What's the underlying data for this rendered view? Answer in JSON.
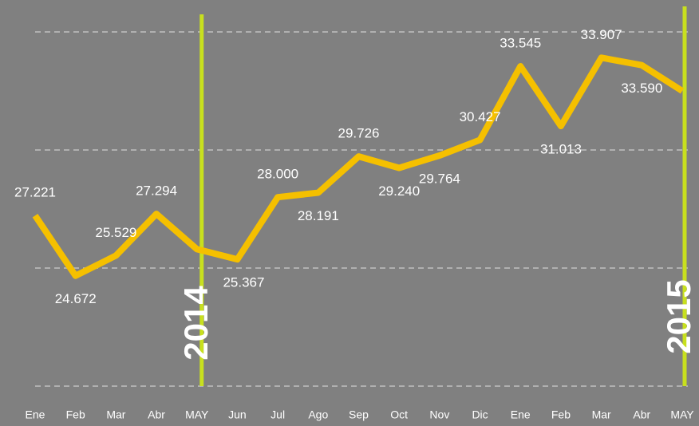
{
  "chart_data": {
    "type": "line",
    "categories": [
      "Ene",
      "Feb",
      "Mar",
      "Abr",
      "MAY",
      "Jun",
      "Jul",
      "Ago",
      "Sep",
      "Oct",
      "Nov",
      "Dic",
      "Ene",
      "Feb",
      "Mar",
      "Abr",
      "MAY"
    ],
    "series": [
      {
        "color": "#f5c000",
        "values": [
          27221,
          24672,
          25529,
          27294,
          25800,
          25367,
          28000,
          28191,
          29726,
          29240,
          29764,
          30427,
          33545,
          31013,
          33907,
          33590,
          32500
        ],
        "value_labels": [
          "27.221",
          "24.672",
          "25.529",
          "27.294",
          null,
          "25.367",
          "28.000",
          "28.191",
          "29.726",
          "29.240",
          "29.764",
          "30.427",
          "33.545",
          "31.013",
          "33.907",
          "33.590",
          null
        ]
      }
    ],
    "ylim": [
      20000,
      35000
    ],
    "yticks": [
      20000,
      25000,
      30000,
      35000
    ],
    "grid": true,
    "annotations": [
      {
        "text": "2014",
        "category_index": 4,
        "color": "#c8e01e"
      },
      {
        "text": "2015",
        "category_index": 16,
        "color": "#c8e01e"
      }
    ]
  }
}
